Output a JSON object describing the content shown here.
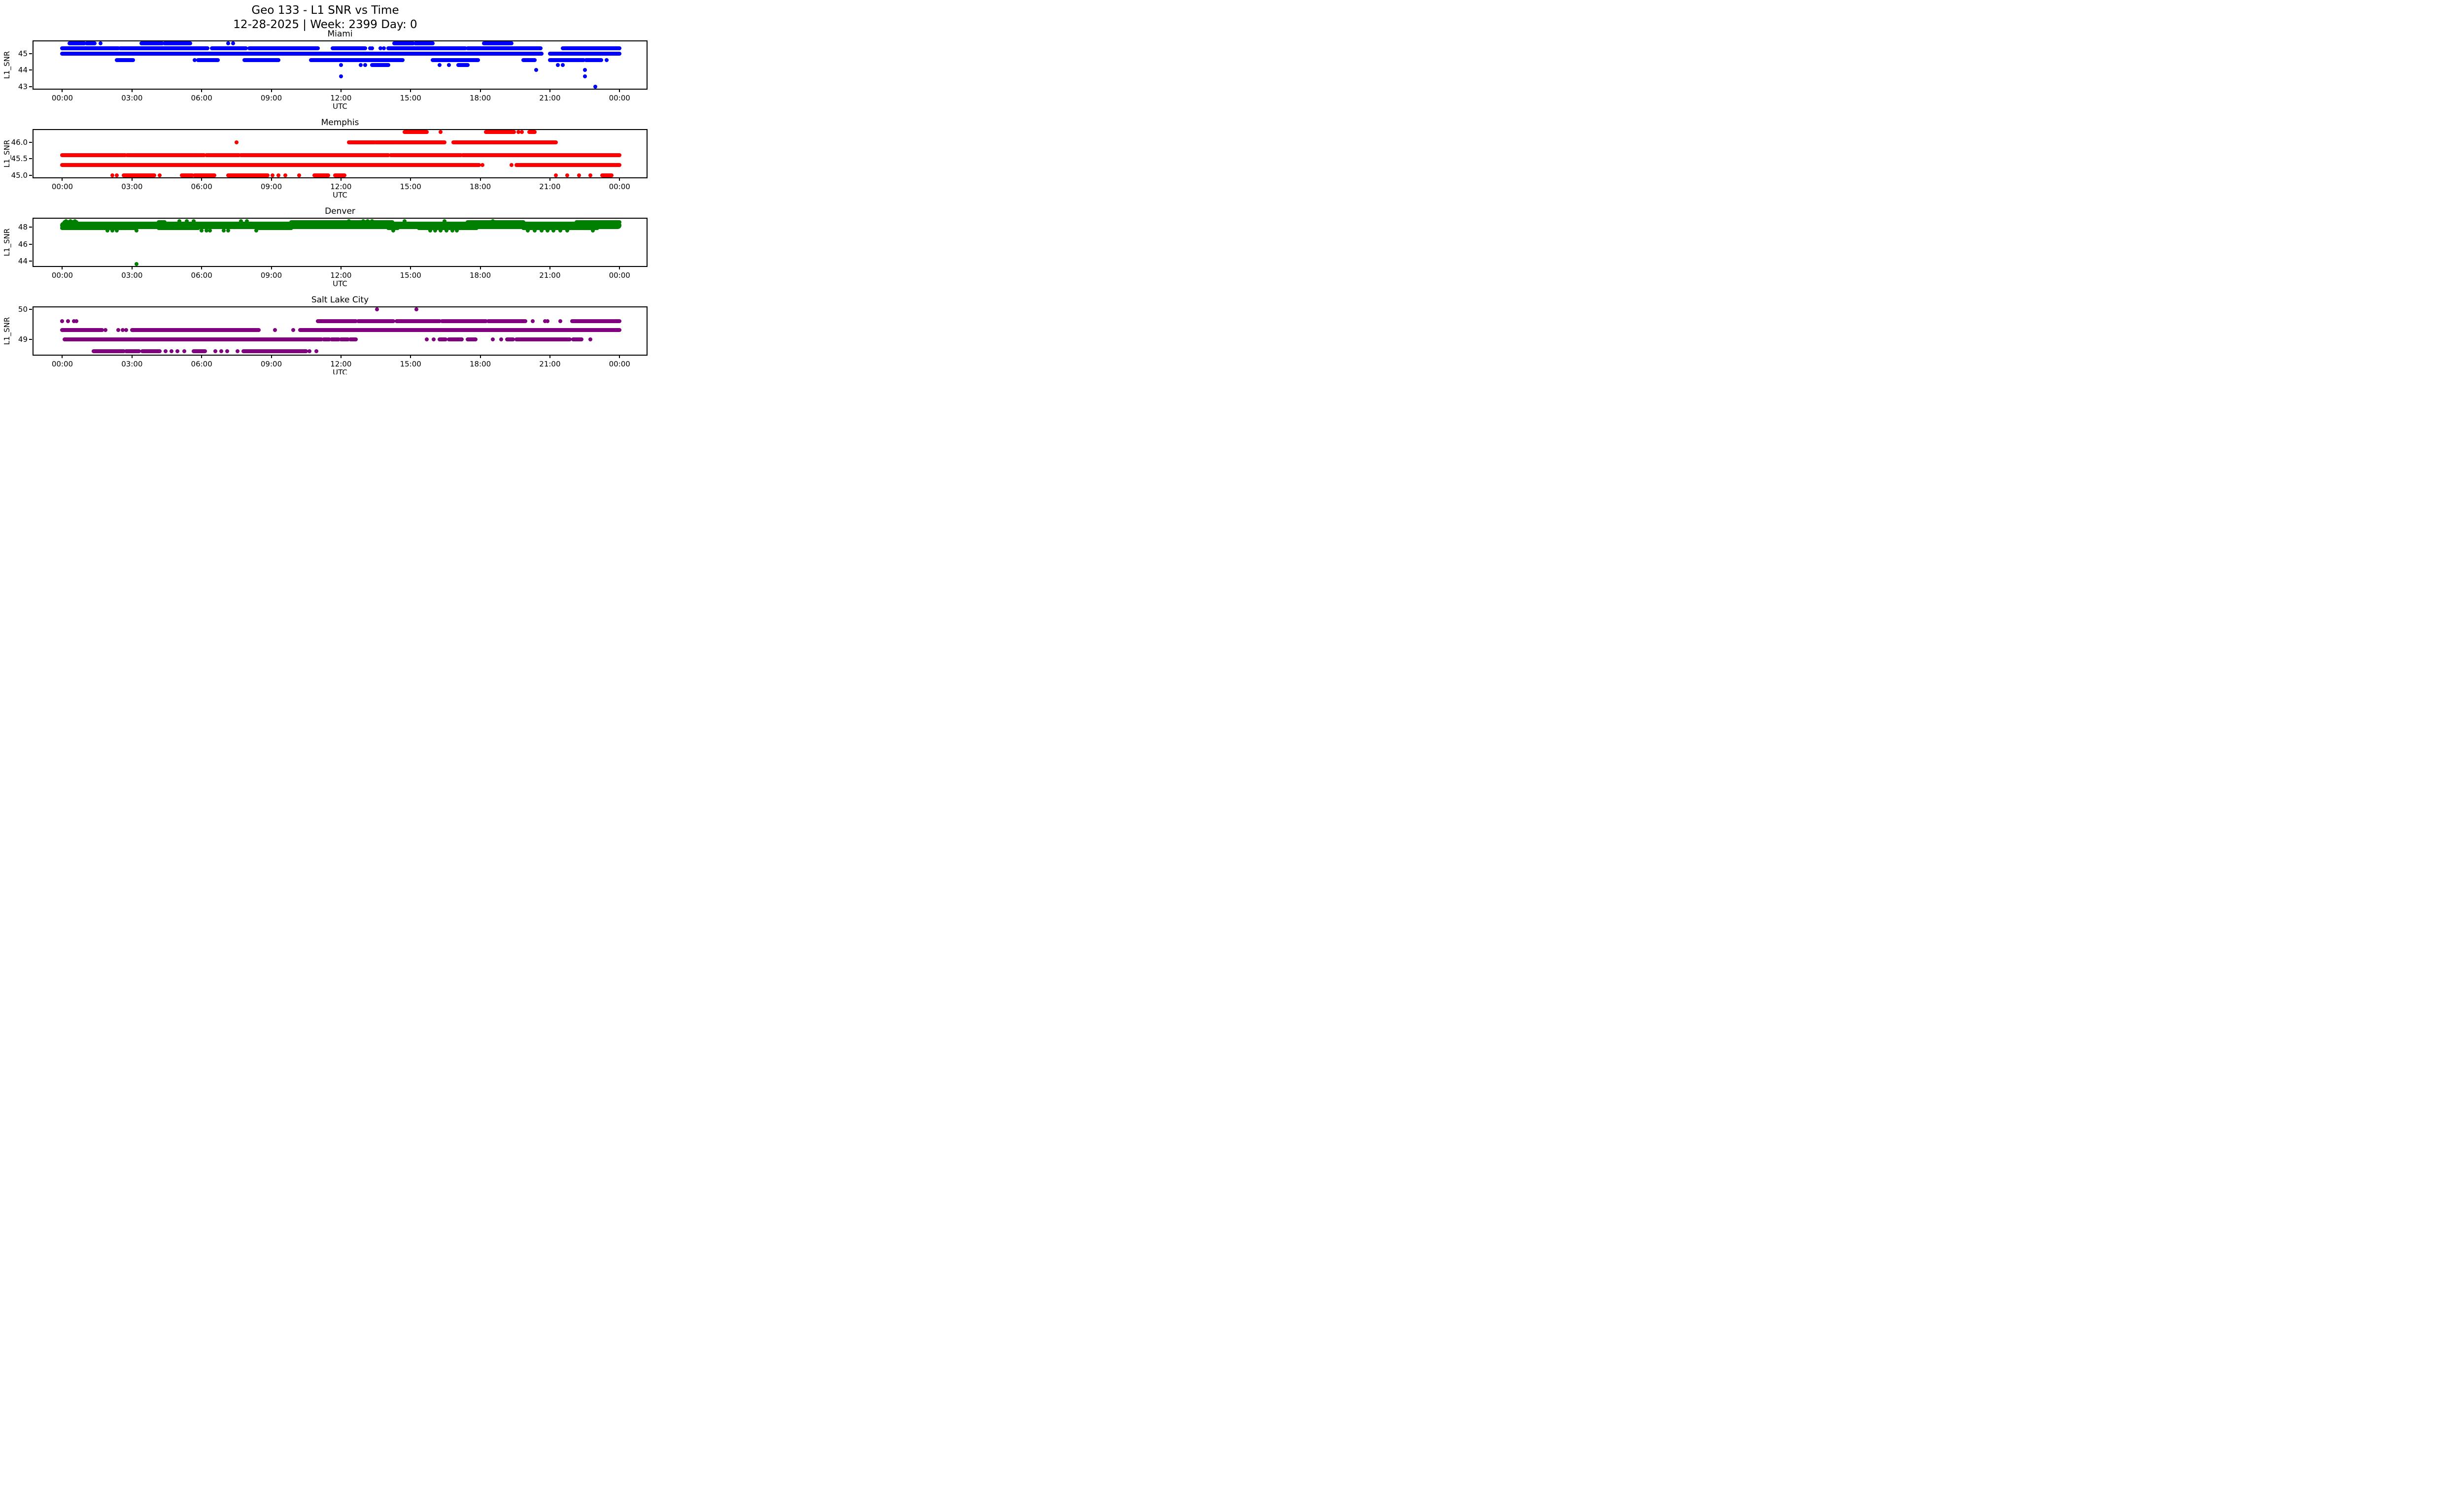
{
  "figure": {
    "title": "Geo 133 - L1 SNR vs Time",
    "subtitle": "12-28-2025 | Week: 2399 Day: 0",
    "background": "#ffffff",
    "text_color": "#000000"
  },
  "x_axis": {
    "label": "UTC",
    "range_hours": [
      0,
      24
    ],
    "margin_left_frac": 0.047,
    "margin_right_frac": 0.044,
    "ticks": [
      {
        "h": 0,
        "label": "00:00"
      },
      {
        "h": 3,
        "label": "03:00"
      },
      {
        "h": 6,
        "label": "06:00"
      },
      {
        "h": 9,
        "label": "09:00"
      },
      {
        "h": 12,
        "label": "12:00"
      },
      {
        "h": 15,
        "label": "15:00"
      },
      {
        "h": 18,
        "label": "18:00"
      },
      {
        "h": 21,
        "label": "21:00"
      },
      {
        "h": 24,
        "label": "00:00"
      }
    ]
  },
  "chart_data": [
    {
      "type": "scatter",
      "title": "Miami",
      "color": "#0000ff",
      "ylabel": "L1_SNR",
      "xlabel": "UTC",
      "ylim": [
        42.87,
        45.73
      ],
      "yticks": [
        {
          "v": 45,
          "label": "45"
        },
        {
          "v": 44,
          "label": "44"
        },
        {
          "v": 43,
          "label": "43"
        }
      ],
      "bands": [
        {
          "y": 45.6,
          "segments": [
            [
              0.3,
              0.95
            ],
            [
              1.05,
              1.4
            ],
            [
              3.4,
              4.3
            ],
            [
              4.4,
              5.5
            ],
            [
              14.3,
              15.1
            ],
            [
              15.2,
              15.95
            ],
            [
              18.15,
              19.35
            ]
          ],
          "dots": [
            1.65,
            7.15,
            7.35
          ]
        },
        {
          "y": 45.3,
          "segments": [
            [
              0.0,
              2.4
            ],
            [
              2.5,
              6.25
            ],
            [
              6.45,
              7.9
            ],
            [
              8.05,
              11.0
            ],
            [
              11.65,
              13.05
            ],
            [
              14.05,
              17.35
            ],
            [
              17.45,
              20.6
            ],
            [
              21.55,
              24.0
            ]
          ],
          "dots": [
            13.25,
            13.35,
            13.7,
            13.85
          ]
        },
        {
          "y": 45.0,
          "segments": [
            [
              0.0,
              20.65
            ],
            [
              21.0,
              24.0
            ]
          ],
          "dots": []
        },
        {
          "y": 44.6,
          "segments": [
            [
              2.35,
              3.05
            ],
            [
              5.85,
              6.7
            ],
            [
              7.85,
              9.3
            ],
            [
              10.7,
              14.65
            ],
            [
              15.95,
              17.9
            ],
            [
              19.85,
              20.35
            ],
            [
              21.0,
              22.45
            ],
            [
              22.55,
              23.2
            ]
          ],
          "dots": [
            5.7,
            23.45
          ]
        },
        {
          "y": 44.3,
          "segments": [
            [
              13.35,
              14.05
            ],
            [
              17.05,
              17.45
            ]
          ],
          "dots": [
            12.0,
            12.85,
            13.05,
            16.25,
            16.65,
            21.35,
            21.55
          ]
        },
        {
          "y": 44.0,
          "segments": [],
          "dots": [
            20.4,
            22.5
          ]
        },
        {
          "y": 43.6,
          "segments": [],
          "dots": [
            12.0,
            22.5
          ]
        },
        {
          "y": 43.0,
          "segments": [],
          "dots": [
            22.95
          ]
        }
      ]
    },
    {
      "type": "scatter",
      "title": "Memphis",
      "color": "#ff0000",
      "ylabel": "L1_SNR",
      "xlabel": "UTC",
      "ylim": [
        44.935,
        46.365
      ],
      "yticks": [
        {
          "v": 46.0,
          "label": "46.0"
        },
        {
          "v": 45.5,
          "label": "45.5"
        },
        {
          "v": 45.0,
          "label": "45.0"
        }
      ],
      "bands": [
        {
          "y": 46.3,
          "segments": [
            [
              14.75,
              15.7
            ],
            [
              18.25,
              19.45
            ],
            [
              20.1,
              20.35
            ]
          ],
          "dots": [
            16.3,
            19.65,
            19.8
          ]
        },
        {
          "y": 46.0,
          "segments": [
            [
              12.35,
              13.45
            ],
            [
              13.5,
              14.4
            ],
            [
              14.45,
              16.45
            ],
            [
              16.85,
              18.45
            ],
            [
              18.5,
              21.25
            ]
          ],
          "dots": [
            7.5
          ]
        },
        {
          "y": 45.6,
          "segments": [
            [
              0.0,
              2.7
            ],
            [
              2.8,
              6.1
            ],
            [
              6.2,
              7.6
            ],
            [
              7.7,
              14.05
            ],
            [
              14.15,
              17.15
            ],
            [
              17.25,
              24.0
            ]
          ],
          "dots": []
        },
        {
          "y": 45.3,
          "segments": [
            [
              0.0,
              17.95
            ],
            [
              19.55,
              24.0
            ]
          ],
          "dots": [
            18.1,
            19.35
          ]
        },
        {
          "y": 45.0,
          "segments": [
            [
              2.65,
              3.15
            ],
            [
              3.2,
              3.95
            ],
            [
              5.15,
              5.6
            ],
            [
              5.7,
              6.55
            ],
            [
              7.15,
              8.85
            ],
            [
              10.85,
              11.45
            ],
            [
              11.75,
              12.15
            ],
            [
              23.25,
              23.65
            ]
          ],
          "dots": [
            2.15,
            2.35,
            4.2,
            9.05,
            9.3,
            9.6,
            10.2,
            21.25,
            21.75,
            22.25,
            22.75
          ]
        }
      ]
    },
    {
      "type": "scatter",
      "title": "Denver",
      "color": "#008000",
      "ylabel": "L1_SNR",
      "xlabel": "UTC",
      "ylim": [
        43.45,
        49.0
      ],
      "yticks": [
        {
          "v": 48,
          "label": "48"
        },
        {
          "v": 46,
          "label": "46"
        },
        {
          "v": 44,
          "label": "44"
        }
      ],
      "bands": [
        {
          "y": 48.7,
          "segments": [],
          "dots": [
            0.15,
            0.35,
            0.55,
            5.05,
            5.35,
            5.65,
            7.7,
            7.95,
            12.35,
            12.95,
            13.15,
            13.35,
            14.75,
            16.45,
            18.55
          ]
        },
        {
          "y": 48.6,
          "segments": [
            [
              0.1,
              0.6
            ],
            [
              4.15,
              4.4
            ],
            [
              9.85,
              14.2
            ],
            [
              17.45,
              19.85
            ],
            [
              22.15,
              24.0
            ]
          ],
          "dots": []
        },
        {
          "y": 48.225,
          "h": 0.45,
          "segments": [
            [
              0.0,
              24.0
            ]
          ],
          "dots": []
        },
        {
          "y": 47.9,
          "segments": [
            [
              0.0,
              3.15
            ],
            [
              4.15,
              5.85
            ],
            [
              8.45,
              9.85
            ],
            [
              14.05,
              14.45
            ],
            [
              15.35,
              17.85
            ],
            [
              19.85,
              23.05
            ]
          ],
          "dots": []
        },
        {
          "y": 47.6,
          "segments": [],
          "dots": [
            1.95,
            2.15,
            2.35,
            3.2,
            6.0,
            6.2,
            6.35,
            6.95,
            7.15,
            8.35,
            14.25,
            15.85,
            16.05,
            16.3,
            16.55,
            16.8,
            17.0,
            20.05,
            20.35,
            20.65,
            20.9,
            21.15,
            21.45,
            21.75,
            22.85
          ]
        },
        {
          "y": 43.7,
          "segments": [],
          "dots": [
            3.2
          ]
        }
      ]
    },
    {
      "type": "scatter",
      "title": "Salt Lake City",
      "color": "#800080",
      "ylabel": "L1_SNR",
      "xlabel": "UTC",
      "ylim": [
        48.48,
        50.07
      ],
      "yticks": [
        {
          "v": 50,
          "label": "50"
        },
        {
          "v": 49,
          "label": "49"
        }
      ],
      "bands": [
        {
          "y": 50.0,
          "segments": [],
          "dots": [
            13.55,
            15.25
          ]
        },
        {
          "y": 49.6,
          "segments": [
            [
              11.0,
              12.65
            ],
            [
              12.75,
              14.25
            ],
            [
              14.4,
              16.25
            ],
            [
              16.35,
              18.25
            ],
            [
              18.35,
              19.95
            ],
            [
              21.95,
              24.0
            ]
          ],
          "dots": [
            0.0,
            0.25,
            0.5,
            0.6,
            20.25,
            20.8,
            20.9,
            21.45
          ]
        },
        {
          "y": 49.3,
          "segments": [
            [
              0.0,
              1.7
            ],
            [
              3.0,
              8.45
            ],
            [
              10.25,
              24.0
            ]
          ],
          "dots": [
            1.85,
            2.4,
            2.6,
            2.75,
            9.15,
            9.95
          ]
        },
        {
          "y": 49.0,
          "segments": [
            [
              0.1,
              11.15
            ],
            [
              11.25,
              11.5
            ],
            [
              11.6,
              11.9
            ],
            [
              12.0,
              12.3
            ],
            [
              12.4,
              12.65
            ],
            [
              16.25,
              16.5
            ],
            [
              16.65,
              17.2
            ],
            [
              17.45,
              17.8
            ],
            [
              19.15,
              19.4
            ],
            [
              19.55,
              21.85
            ],
            [
              22.0,
              22.35
            ]
          ],
          "dots": [
            15.7,
            16.0,
            18.55,
            18.9,
            22.75
          ]
        },
        {
          "y": 48.6,
          "segments": [
            [
              1.35,
              2.65
            ],
            [
              2.75,
              3.3
            ],
            [
              3.45,
              4.2
            ],
            [
              5.65,
              6.15
            ],
            [
              7.8,
              10.5
            ]
          ],
          "dots": [
            4.45,
            4.7,
            4.95,
            5.25,
            6.6,
            6.85,
            7.1,
            7.55,
            10.65,
            10.95
          ]
        }
      ]
    }
  ]
}
